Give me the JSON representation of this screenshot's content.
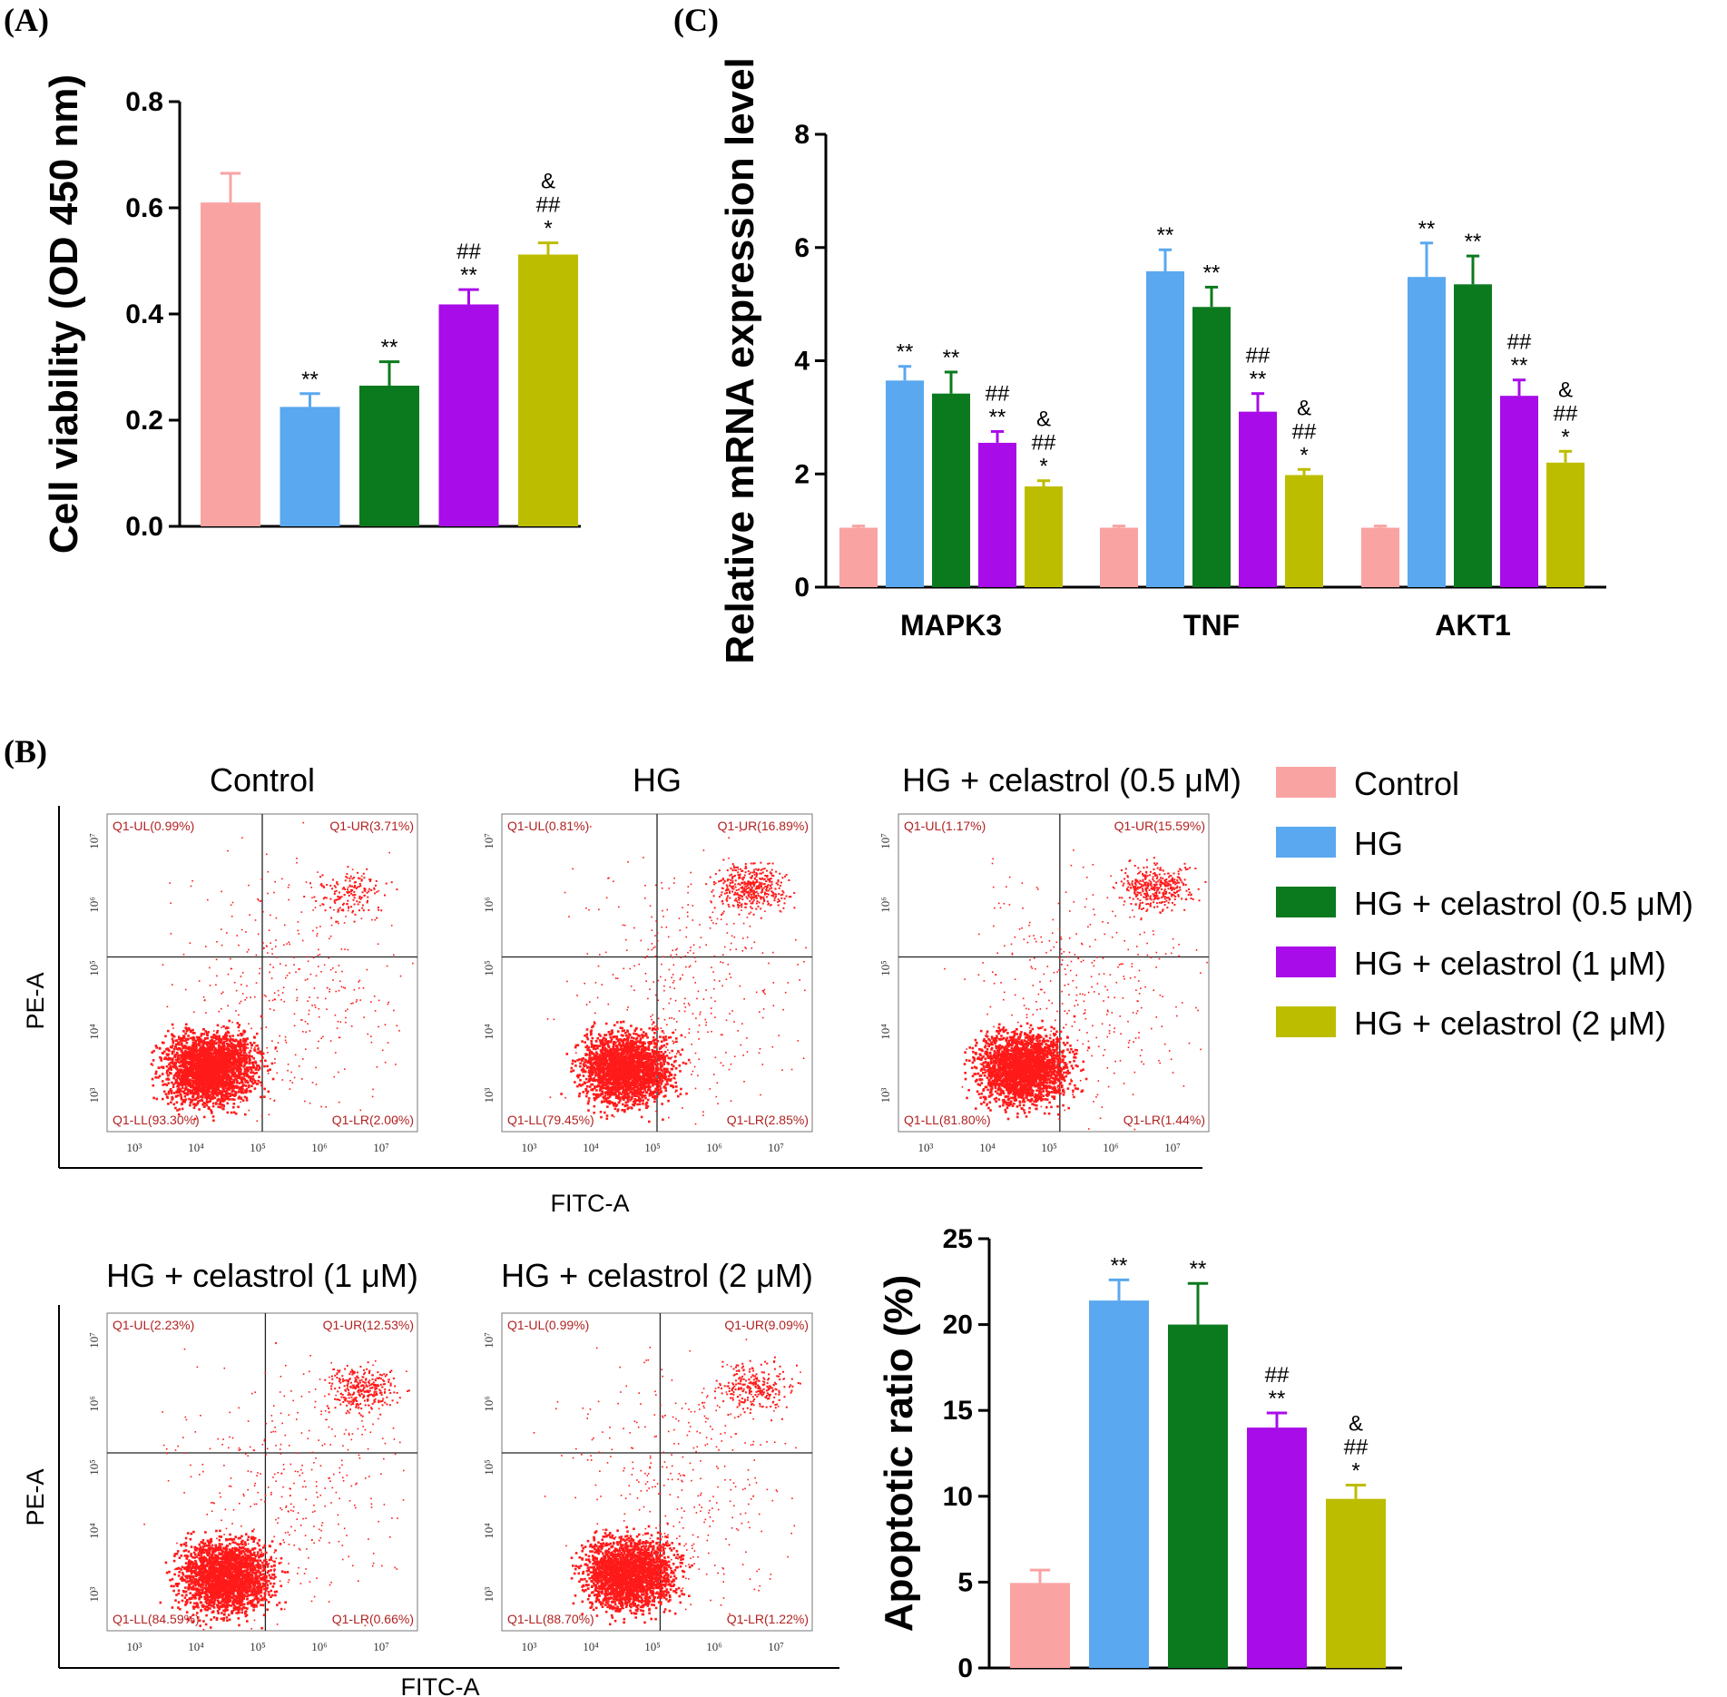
{
  "panel_labels": {
    "a": "(A)",
    "b": "(B)",
    "c": "(C)"
  },
  "colors": {
    "control": "#f9a3a3",
    "hg": "#5aa8ef",
    "c05": "#0b7a1f",
    "c1": "#a80ce8",
    "c2": "#bdbd00",
    "dot": "#ff1a1a",
    "quad_text": "#b22222"
  },
  "legend": [
    "Control",
    "HG",
    "HG + celastrol (0.5 μM)",
    "HG + celastrol (1 μM)",
    "HG + celastrol (2 μM)"
  ],
  "chart_data": [
    {
      "id": "A",
      "type": "bar",
      "ylabel": "Cell viability (OD 450 nm)",
      "ylim": [
        0,
        0.8
      ],
      "yticks": [
        "0.0",
        "0.2",
        "0.4",
        "0.6",
        "0.8"
      ],
      "ytick_values": [
        0,
        0.2,
        0.4,
        0.6,
        0.8
      ],
      "categories": [
        "Control",
        "HG",
        "HG + celastrol (0.5 μM)",
        "HG + celastrol (1 μM)",
        "HG + celastrol (2 μM)"
      ],
      "values": [
        0.61,
        0.225,
        0.265,
        0.418,
        0.512
      ],
      "errors": [
        0.055,
        0.025,
        0.045,
        0.028,
        0.022
      ],
      "significance": [
        "",
        "**",
        "**",
        "##\n**",
        "&\n##\n*"
      ]
    },
    {
      "id": "C",
      "type": "bar",
      "ylabel": "Relative mRNA expression level",
      "ylim": [
        0,
        8
      ],
      "yticks": [
        "0",
        "2",
        "4",
        "6",
        "8"
      ],
      "ytick_values": [
        0,
        2,
        4,
        6,
        8
      ],
      "categories": [
        "MAPK3",
        "TNF",
        "AKT1"
      ],
      "series": [
        {
          "name": "Control",
          "values": [
            1.05,
            1.05,
            1.05
          ],
          "errors": [
            0.03,
            0.03,
            0.03
          ],
          "significance": [
            "",
            "",
            ""
          ]
        },
        {
          "name": "HG",
          "values": [
            3.65,
            5.58,
            5.48
          ],
          "errors": [
            0.25,
            0.38,
            0.6
          ],
          "significance": [
            "**",
            "**",
            "**"
          ]
        },
        {
          "name": "HG + celastrol (0.5 μM)",
          "values": [
            3.42,
            4.95,
            5.35
          ],
          "errors": [
            0.38,
            0.35,
            0.5
          ],
          "significance": [
            "**",
            "**",
            "**"
          ]
        },
        {
          "name": "HG + celastrol (1 μM)",
          "values": [
            2.55,
            3.1,
            3.38
          ],
          "errors": [
            0.2,
            0.32,
            0.28
          ],
          "significance": [
            "##\n**",
            "##\n**",
            "##\n**"
          ]
        },
        {
          "name": "HG + celastrol (2 μM)",
          "values": [
            1.78,
            1.98,
            2.2
          ],
          "errors": [
            0.1,
            0.1,
            0.2
          ],
          "significance": [
            "&\n##\n*",
            "&\n##\n*",
            "&\n##\n*"
          ]
        }
      ]
    },
    {
      "id": "B-bar",
      "type": "bar",
      "ylabel": "Apoptotic ratio (%)",
      "ylim": [
        0,
        25
      ],
      "yticks": [
        "0",
        "5",
        "10",
        "15",
        "20",
        "25"
      ],
      "ytick_values": [
        0,
        5,
        10,
        15,
        20,
        25
      ],
      "categories": [
        "Control",
        "HG",
        "HG + celastrol (0.5 μM)",
        "HG + celastrol (1 μM)",
        "HG + celastrol (2 μM)"
      ],
      "values": [
        4.95,
        21.4,
        20.0,
        14.0,
        9.85
      ],
      "errors": [
        0.75,
        1.2,
        2.4,
        0.85,
        0.8
      ],
      "significance": [
        "",
        "**",
        "**",
        "##\n**",
        "&\n##\n*"
      ]
    }
  ],
  "flow": {
    "x_label": "FITC-A",
    "y_label": "PE-A",
    "ticks": [
      "10³",
      "10⁴",
      "10⁵",
      "10⁶",
      "10⁷"
    ],
    "plots": [
      {
        "title": "Control",
        "ul": "Q1-UL(0.99%)",
        "ur": "Q1-UR(3.71%)",
        "ll": "Q1-LL(93.30%)",
        "lr": "Q1-LR(2.00%)"
      },
      {
        "title": "HG",
        "ul": "Q1-UL(0.81%)",
        "ur": "Q1-UR(16.89%)",
        "ll": "Q1-LL(79.45%)",
        "lr": "Q1-LR(2.85%)"
      },
      {
        "title": "HG + celastrol (0.5 μM)",
        "ul": "Q1-UL(1.17%)",
        "ur": "Q1-UR(15.59%)",
        "ll": "Q1-LL(81.80%)",
        "lr": "Q1-LR(1.44%)"
      },
      {
        "title": "HG + celastrol (1 μM)",
        "ul": "Q1-UL(2.23%)",
        "ur": "Q1-UR(12.53%)",
        "ll": "Q1-LL(84.59%)",
        "lr": "Q1-LR(0.66%)"
      },
      {
        "title": "HG + celastrol (2 μM)",
        "ul": "Q1-UL(0.99%)",
        "ur": "Q1-UR(9.09%)",
        "ll": "Q1-LL(88.70%)",
        "lr": "Q1-LR(1.22%)"
      }
    ]
  }
}
